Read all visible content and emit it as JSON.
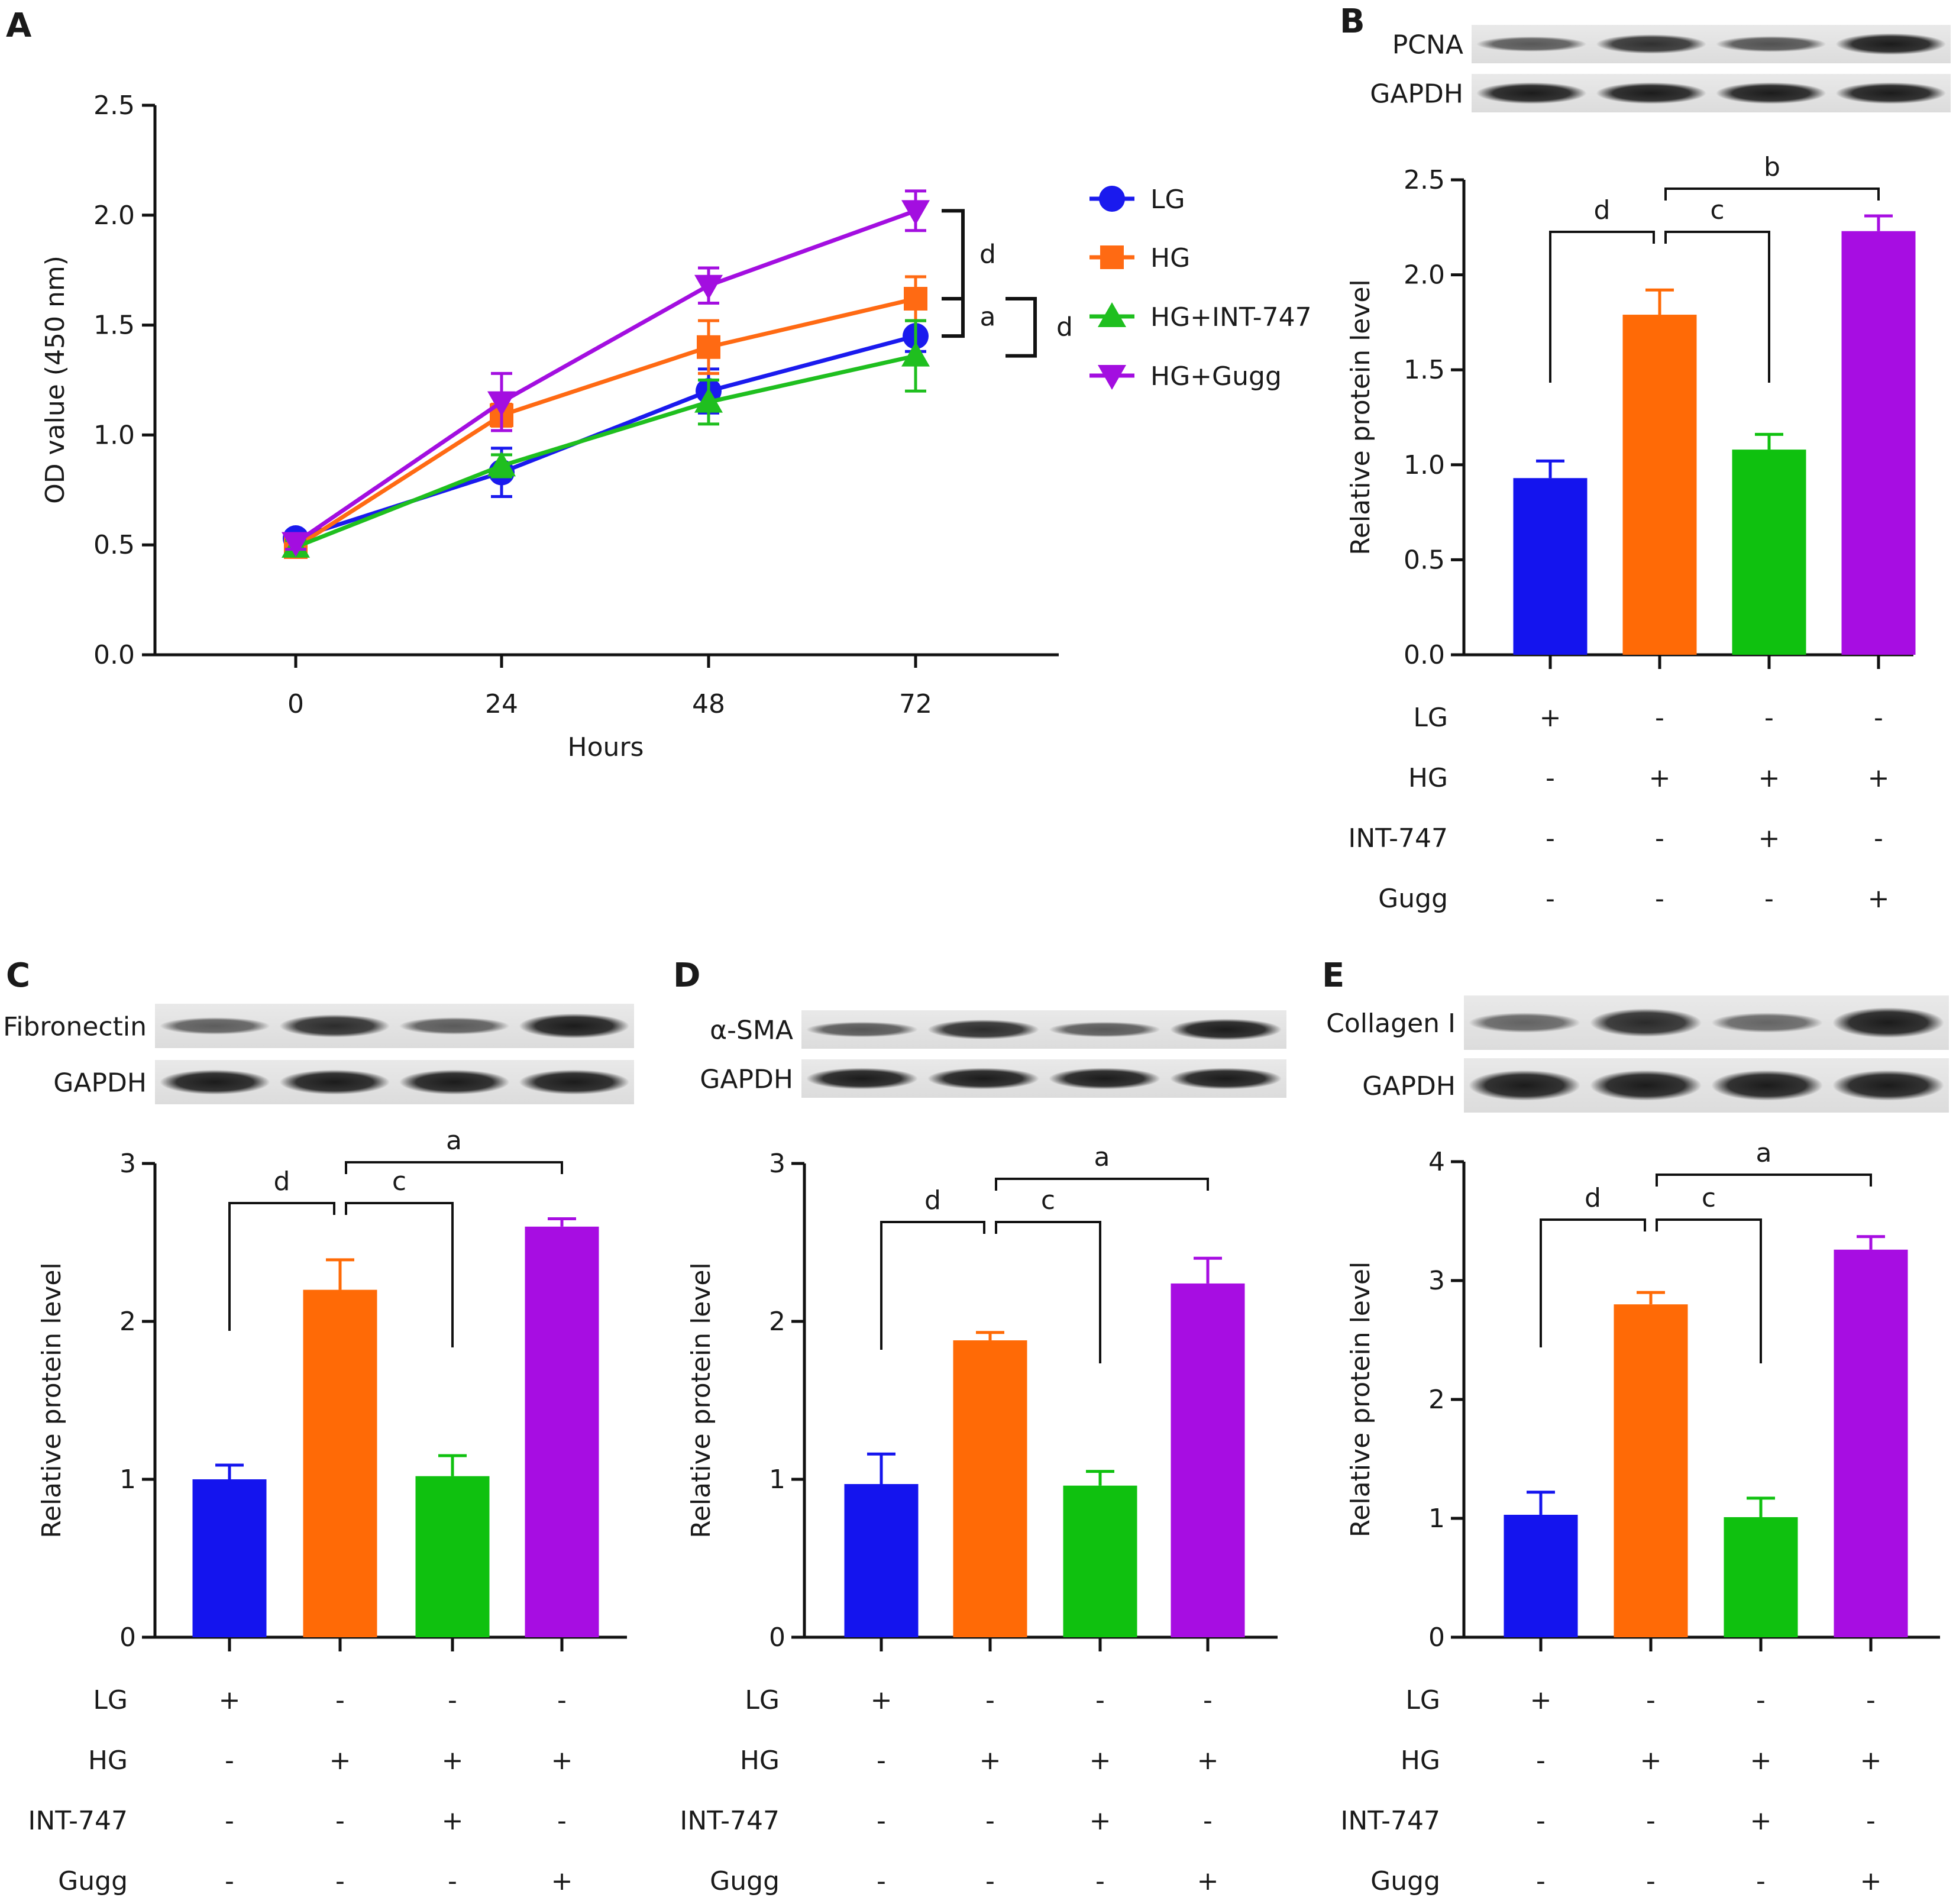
{
  "chart_data": [
    {
      "panel": "A",
      "type": "line",
      "xlabel": "Hours",
      "ylabel": "OD value (450 nm)",
      "x": [
        0,
        24,
        48,
        72
      ],
      "ylim": [
        0,
        2.5
      ],
      "yticks": [
        "0.0",
        "0.5",
        "1.0",
        "1.5",
        "2.0",
        "2.5"
      ],
      "series": [
        {
          "name": "LG",
          "marker": "circle",
          "color": "#1a1aee",
          "values": [
            0.53,
            0.83,
            1.2,
            1.45
          ],
          "errors": [
            0.03,
            0.11,
            0.1,
            0.07
          ]
        },
        {
          "name": "HG",
          "marker": "square",
          "color": "#ff6a13",
          "values": [
            0.49,
            1.09,
            1.4,
            1.62
          ],
          "errors": [
            0.03,
            0.05,
            0.12,
            0.1
          ]
        },
        {
          "name": "HG+INT-747",
          "marker": "triangle-up",
          "color": "#1fbf1f",
          "values": [
            0.49,
            0.86,
            1.15,
            1.36
          ],
          "errors": [
            0.03,
            0.05,
            0.1,
            0.16
          ]
        },
        {
          "name": "HG+Gugg",
          "marker": "triangle-down",
          "color": "#a30ee0",
          "values": [
            0.51,
            1.15,
            1.68,
            2.02
          ],
          "errors": [
            0.03,
            0.13,
            0.08,
            0.09
          ]
        }
      ],
      "brackets": [
        {
          "between": [
            "HG+Gugg",
            "HG"
          ],
          "label": "d"
        },
        {
          "between": [
            "HG",
            "LG"
          ],
          "label": "a"
        },
        {
          "between": [
            "HG",
            "HG+INT-747"
          ],
          "label": "d"
        }
      ]
    },
    {
      "panel": "B",
      "type": "bar",
      "blots": [
        "PCNA",
        "GAPDH"
      ],
      "ylabel": "Relative protein level",
      "ylim": [
        0,
        2.5
      ],
      "yticks": [
        "0.0",
        "0.5",
        "1.0",
        "1.5",
        "2.0",
        "2.5"
      ],
      "values": [
        0.93,
        1.79,
        1.08,
        2.23
      ],
      "errors": [
        0.09,
        0.13,
        0.08,
        0.08
      ],
      "significance": [
        {
          "from": 0,
          "to": 1,
          "label": "d"
        },
        {
          "from": 1,
          "to": 2,
          "label": "c"
        },
        {
          "from": 1,
          "to": 3,
          "label": "b"
        }
      ]
    },
    {
      "panel": "C",
      "type": "bar",
      "blots": [
        "Fibronectin",
        "GAPDH"
      ],
      "ylabel": "Relative protein level",
      "ylim": [
        0,
        3
      ],
      "yticks": [
        "0",
        "1",
        "2",
        "3"
      ],
      "values": [
        1.0,
        2.2,
        1.02,
        2.6
      ],
      "errors": [
        0.09,
        0.19,
        0.13,
        0.05
      ],
      "significance": [
        {
          "from": 0,
          "to": 1,
          "label": "d"
        },
        {
          "from": 1,
          "to": 2,
          "label": "c"
        },
        {
          "from": 1,
          "to": 3,
          "label": "a"
        }
      ]
    },
    {
      "panel": "D",
      "type": "bar",
      "blots": [
        "α-SMA",
        "GAPDH"
      ],
      "ylabel": "Relative protein level",
      "ylim": [
        0,
        3
      ],
      "yticks": [
        "0",
        "1",
        "2",
        "3"
      ],
      "values": [
        0.97,
        1.88,
        0.96,
        2.24
      ],
      "errors": [
        0.19,
        0.05,
        0.09,
        0.16
      ],
      "significance": [
        {
          "from": 0,
          "to": 1,
          "label": "d"
        },
        {
          "from": 1,
          "to": 2,
          "label": "c"
        },
        {
          "from": 1,
          "to": 3,
          "label": "a"
        }
      ]
    },
    {
      "panel": "E",
      "type": "bar",
      "blots": [
        "Collagen I",
        "GAPDH"
      ],
      "ylabel": "Relative protein level",
      "ylim": [
        0,
        4
      ],
      "yticks": [
        "0",
        "1",
        "2",
        "3",
        "4"
      ],
      "values": [
        1.03,
        2.8,
        1.01,
        3.26
      ],
      "errors": [
        0.19,
        0.1,
        0.16,
        0.11
      ],
      "significance": [
        {
          "from": 0,
          "to": 1,
          "label": "d"
        },
        {
          "from": 1,
          "to": 2,
          "label": "c"
        },
        {
          "from": 1,
          "to": 3,
          "label": "a"
        }
      ]
    }
  ],
  "treatment_table": {
    "rows": [
      {
        "label": "LG",
        "marks": [
          "+",
          "-",
          "-",
          "-"
        ]
      },
      {
        "label": "HG",
        "marks": [
          "-",
          "+",
          "+",
          "+"
        ]
      },
      {
        "label": "INT-747",
        "marks": [
          "-",
          "-",
          "+",
          "-"
        ]
      },
      {
        "label": "Gugg",
        "marks": [
          "-",
          "-",
          "-",
          "+"
        ]
      }
    ]
  },
  "bar_colors": [
    "#1414ee",
    "#ff6a06",
    "#0fc10f",
    "#a70de2"
  ]
}
